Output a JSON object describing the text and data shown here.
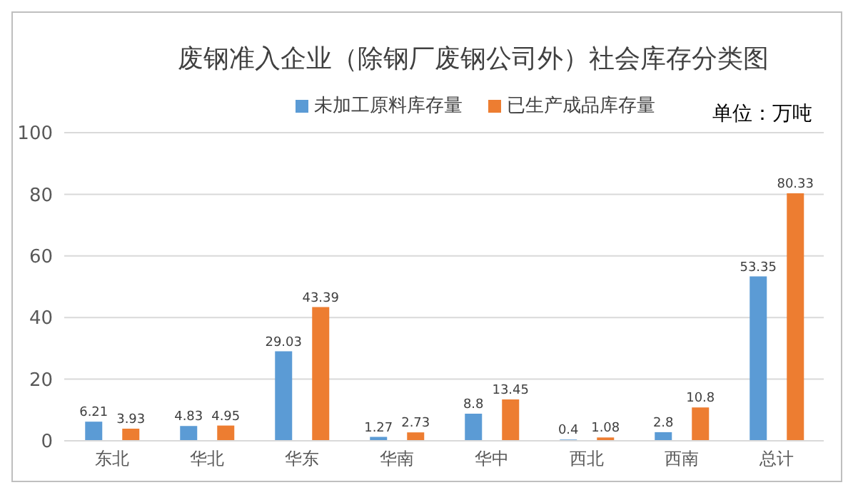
{
  "chart_data": {
    "type": "bar",
    "title": "废钢准入企业（除钢厂废钢公司外）社会库存分类图",
    "categories": [
      "东北",
      "华北",
      "华东",
      "华南",
      "华中",
      "西北",
      "西南",
      "总计"
    ],
    "series": [
      {
        "name": "未加工原料库存量",
        "color": "#5b9bd5",
        "values": [
          6.21,
          4.83,
          29.03,
          1.27,
          8.8,
          0.4,
          2.8,
          53.35
        ]
      },
      {
        "name": "已生产成品库存量",
        "color": "#ed7d31",
        "values": [
          3.93,
          4.95,
          43.39,
          2.73,
          13.45,
          1.08,
          10.8,
          80.33
        ]
      }
    ],
    "ylim": [
      0,
      100
    ],
    "yticks": [
      0,
      20,
      40,
      60,
      80,
      100
    ],
    "grid": "y",
    "legend": "top",
    "data_labels": true,
    "annotations": [
      "单位：万吨"
    ]
  }
}
